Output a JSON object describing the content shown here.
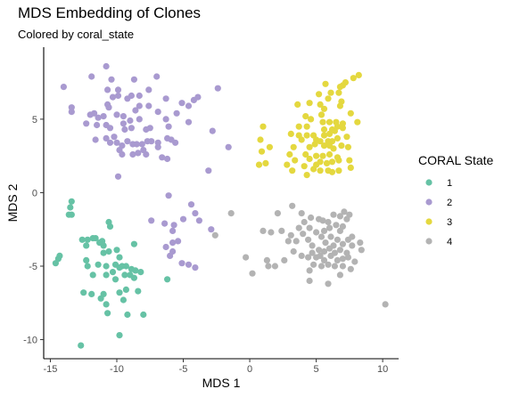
{
  "chart_data": {
    "type": "scatter",
    "title": "MDS Embedding of Clones",
    "subtitle": "Colored by coral_state",
    "xlabel": "MDS 1",
    "ylabel": "MDS 2",
    "xlim": [
      -15.5,
      11.2
    ],
    "ylim": [
      -11.3,
      9.9
    ],
    "x_ticks": [
      -15,
      -10,
      -5,
      0,
      5,
      10
    ],
    "y_ticks": [
      -10,
      -5,
      0,
      5
    ],
    "grid": false,
    "legend": {
      "title": "CORAL State",
      "position": "right"
    },
    "series": [
      {
        "name": "1",
        "color": "#66c2a5",
        "points": [
          [
            -13.4,
            -0.6
          ],
          [
            -13.5,
            -1.0
          ],
          [
            -13.6,
            -1.5
          ],
          [
            -13.4,
            -1.5
          ],
          [
            -14.3,
            -4.3
          ],
          [
            -14.4,
            -4.5
          ],
          [
            -14.6,
            -4.8
          ],
          [
            -12.6,
            -3.2
          ],
          [
            -12.2,
            -3.2
          ],
          [
            -11.8,
            -3.1
          ],
          [
            -12.3,
            -3.6
          ],
          [
            -11.6,
            -3.1
          ],
          [
            -11.1,
            -3.3
          ],
          [
            -11.0,
            -3.6
          ],
          [
            -11.3,
            -3.4
          ],
          [
            -10.6,
            -2.0
          ],
          [
            -10.5,
            -2.3
          ],
          [
            -10.0,
            -3.9
          ],
          [
            -10.6,
            -4.0
          ],
          [
            -11.0,
            -4.1
          ],
          [
            -8.7,
            -3.5
          ],
          [
            -9.8,
            -4.4
          ],
          [
            -12.3,
            -4.6
          ],
          [
            -12.2,
            -5.0
          ],
          [
            -11.4,
            -4.9
          ],
          [
            -10.8,
            -5.0
          ],
          [
            -10.1,
            -4.9
          ],
          [
            -9.6,
            -5.0
          ],
          [
            -9.3,
            -5.0
          ],
          [
            -11.8,
            -5.6
          ],
          [
            -10.8,
            -5.6
          ],
          [
            -10.3,
            -5.4
          ],
          [
            -9.8,
            -5.1
          ],
          [
            -9.4,
            -5.6
          ],
          [
            -9.0,
            -5.6
          ],
          [
            -8.9,
            -5.2
          ],
          [
            -8.6,
            -5.3
          ],
          [
            -8.2,
            -5.4
          ],
          [
            -10.1,
            -5.9
          ],
          [
            -8.7,
            -5.8
          ],
          [
            -12.5,
            -6.8
          ],
          [
            -11.9,
            -6.9
          ],
          [
            -11.0,
            -6.9
          ],
          [
            -9.8,
            -6.8
          ],
          [
            -9.3,
            -6.6
          ],
          [
            -8.4,
            -6.7
          ],
          [
            -11.2,
            -7.2
          ],
          [
            -9.5,
            -7.3
          ],
          [
            -10.8,
            -7.6
          ],
          [
            -10.7,
            -8.2
          ],
          [
            -9.2,
            -8.3
          ],
          [
            -8.0,
            -8.3
          ],
          [
            -6.2,
            -5.9
          ],
          [
            -9.8,
            -9.7
          ],
          [
            -12.7,
            -10.4
          ]
        ]
      },
      {
        "name": "2",
        "color": "#a99ad0",
        "points": [
          [
            -10.8,
            8.6
          ],
          [
            -11.9,
            7.9
          ],
          [
            -10.4,
            7.7
          ],
          [
            -8.7,
            7.7
          ],
          [
            -7.0,
            7.9
          ],
          [
            -14.0,
            7.2
          ],
          [
            -10.7,
            7.0
          ],
          [
            -9.9,
            7.0
          ],
          [
            -7.6,
            7.0
          ],
          [
            -2.4,
            7.1
          ],
          [
            -10.3,
            6.5
          ],
          [
            -9.9,
            6.6
          ],
          [
            -9.2,
            6.4
          ],
          [
            -8.9,
            6.6
          ],
          [
            -8.3,
            6.6
          ],
          [
            -6.3,
            6.4
          ],
          [
            -4.2,
            6.3
          ],
          [
            -3.9,
            6.5
          ],
          [
            -13.4,
            5.8
          ],
          [
            -13.4,
            5.5
          ],
          [
            -10.7,
            6.0
          ],
          [
            -10.6,
            5.8
          ],
          [
            -10.0,
            5.3
          ],
          [
            -8.6,
            5.6
          ],
          [
            -7.6,
            5.9
          ],
          [
            -8.3,
            5.9
          ],
          [
            -6.3,
            5.0
          ],
          [
            -5.5,
            5.4
          ],
          [
            -5.1,
            6.1
          ],
          [
            -4.6,
            5.9
          ],
          [
            -12.0,
            5.3
          ],
          [
            -11.7,
            5.4
          ],
          [
            -11.4,
            5.1
          ],
          [
            -11.0,
            5.2
          ],
          [
            -9.5,
            5.2
          ],
          [
            -9.5,
            4.7
          ],
          [
            -9.0,
            4.9
          ],
          [
            -8.3,
            5.0
          ],
          [
            -6.9,
            5.5
          ],
          [
            -7.8,
            4.3
          ],
          [
            -12.3,
            4.7
          ],
          [
            -11.5,
            4.6
          ],
          [
            -10.8,
            4.6
          ],
          [
            -10.5,
            4.4
          ],
          [
            -10.2,
            3.8
          ],
          [
            -9.4,
            4.3
          ],
          [
            -8.9,
            4.4
          ],
          [
            -7.5,
            4.4
          ],
          [
            -6.1,
            4.5
          ],
          [
            -4.6,
            4.8
          ],
          [
            -2.8,
            4.2
          ],
          [
            -11.6,
            3.6
          ],
          [
            -10.8,
            3.7
          ],
          [
            -10.5,
            3.4
          ],
          [
            -10.0,
            3.4
          ],
          [
            -9.6,
            3.2
          ],
          [
            -9.2,
            3.5
          ],
          [
            -8.8,
            3.3
          ],
          [
            -8.5,
            3.3
          ],
          [
            -8.1,
            3.3
          ],
          [
            -7.7,
            3.5
          ],
          [
            -7.4,
            3.5
          ],
          [
            -6.9,
            3.4
          ],
          [
            -6.2,
            3.7
          ],
          [
            -5.9,
            3.6
          ],
          [
            -5.6,
            3.4
          ],
          [
            -1.6,
            3.1
          ],
          [
            -9.8,
            2.9
          ],
          [
            -9.6,
            2.6
          ],
          [
            -8.8,
            2.6
          ],
          [
            -8.4,
            2.7
          ],
          [
            -8.0,
            2.9
          ],
          [
            -7.8,
            2.6
          ],
          [
            -6.9,
            3.1
          ],
          [
            -6.6,
            2.4
          ],
          [
            -6.2,
            2.3
          ],
          [
            -3.1,
            1.5
          ],
          [
            -9.9,
            1.1
          ],
          [
            -6.1,
            -0.2
          ],
          [
            -4.4,
            -0.8
          ],
          [
            -4.1,
            -1.4
          ],
          [
            -5.0,
            -1.8
          ],
          [
            -3.8,
            -1.9
          ],
          [
            -5.7,
            -2.2
          ],
          [
            -6.4,
            -2.1
          ],
          [
            -7.4,
            -1.9
          ],
          [
            -2.9,
            -2.5
          ],
          [
            -5.8,
            -2.6
          ],
          [
            -5.8,
            -3.4
          ],
          [
            -5.4,
            -3.3
          ],
          [
            -6.3,
            -3.7
          ],
          [
            -5.8,
            -4.0
          ],
          [
            -6.0,
            -4.3
          ],
          [
            -5.1,
            -4.8
          ],
          [
            -4.6,
            -4.9
          ],
          [
            -4.1,
            -5.1
          ]
        ]
      },
      {
        "name": "3",
        "color": "#e4d83f",
        "points": [
          [
            7.8,
            7.8
          ],
          [
            8.2,
            8.0
          ],
          [
            7.2,
            7.5
          ],
          [
            5.7,
            7.4
          ],
          [
            7.0,
            7.3
          ],
          [
            6.8,
            7.2
          ],
          [
            6.1,
            6.8
          ],
          [
            6.7,
            6.8
          ],
          [
            5.2,
            6.7
          ],
          [
            5.9,
            6.4
          ],
          [
            6.9,
            6.2
          ],
          [
            3.6,
            6.0
          ],
          [
            4.5,
            6.1
          ],
          [
            5.3,
            6.0
          ],
          [
            5.6,
            5.7
          ],
          [
            5.4,
            5.3
          ],
          [
            6.8,
            5.9
          ],
          [
            7.6,
            5.4
          ],
          [
            8.1,
            4.8
          ],
          [
            7.0,
            4.7
          ],
          [
            4.2,
            5.2
          ],
          [
            4.6,
            5.0
          ],
          [
            5.5,
            4.8
          ],
          [
            6.0,
            4.8
          ],
          [
            6.5,
            4.8
          ],
          [
            1.0,
            4.5
          ],
          [
            3.7,
            4.5
          ],
          [
            4.3,
            4.5
          ],
          [
            5.6,
            4.3
          ],
          [
            6.2,
            4.3
          ],
          [
            6.6,
            4.5
          ],
          [
            7.0,
            4.4
          ],
          [
            3.1,
            4.0
          ],
          [
            3.7,
            3.9
          ],
          [
            4.3,
            3.9
          ],
          [
            4.8,
            3.9
          ],
          [
            5.6,
            3.9
          ],
          [
            6.0,
            4.0
          ],
          [
            6.4,
            4.2
          ],
          [
            7.3,
            3.8
          ],
          [
            0.8,
            3.6
          ],
          [
            3.9,
            3.6
          ],
          [
            5.0,
            3.6
          ],
          [
            5.3,
            3.5
          ],
          [
            5.9,
            3.5
          ],
          [
            6.2,
            3.5
          ],
          [
            6.6,
            3.7
          ],
          [
            1.5,
            3.1
          ],
          [
            3.3,
            3.1
          ],
          [
            4.5,
            3.1
          ],
          [
            4.9,
            3.3
          ],
          [
            5.6,
            3.2
          ],
          [
            6.0,
            3.2
          ],
          [
            6.3,
            3.0
          ],
          [
            6.9,
            3.2
          ],
          [
            7.4,
            3.1
          ],
          [
            0.9,
            2.8
          ],
          [
            3.0,
            2.6
          ],
          [
            4.2,
            2.6
          ],
          [
            5.0,
            2.5
          ],
          [
            5.5,
            2.5
          ],
          [
            6.0,
            2.6
          ],
          [
            6.6,
            2.4
          ],
          [
            5.3,
            2.1
          ],
          [
            5.8,
            2.0
          ],
          [
            6.2,
            2.1
          ],
          [
            6.7,
            2.2
          ],
          [
            7.5,
            2.2
          ],
          [
            3.4,
            2.2
          ],
          [
            4.5,
            2.3
          ],
          [
            1.2,
            2.0
          ],
          [
            2.8,
            1.9
          ],
          [
            4.1,
            1.8
          ],
          [
            4.8,
            1.6
          ],
          [
            5.3,
            1.5
          ],
          [
            5.9,
            1.5
          ],
          [
            6.2,
            1.4
          ],
          [
            6.7,
            1.5
          ],
          [
            7.6,
            1.7
          ],
          [
            0.7,
            1.9
          ],
          [
            3.2,
            1.5
          ],
          [
            5.0,
            1.9
          ],
          [
            4.3,
            1.2
          ]
        ]
      },
      {
        "name": "4",
        "color": "#b3b3b3",
        "points": [
          [
            3.2,
            -0.9
          ],
          [
            3.9,
            -1.4
          ],
          [
            4.1,
            -2.0
          ],
          [
            4.6,
            -1.7
          ],
          [
            5.2,
            -1.8
          ],
          [
            5.5,
            -1.9
          ],
          [
            5.9,
            -2.0
          ],
          [
            6.3,
            -1.5
          ],
          [
            6.8,
            -1.6
          ],
          [
            7.1,
            -1.3
          ],
          [
            7.3,
            -1.8
          ],
          [
            7.5,
            -1.5
          ],
          [
            2.1,
            -1.4
          ],
          [
            -1.4,
            -1.4
          ],
          [
            -2.6,
            -2.9
          ],
          [
            1.0,
            -2.6
          ],
          [
            1.6,
            -2.7
          ],
          [
            2.4,
            -2.6
          ],
          [
            3.7,
            -2.4
          ],
          [
            4.0,
            -2.8
          ],
          [
            4.5,
            -2.4
          ],
          [
            5.0,
            -2.7
          ],
          [
            5.6,
            -2.6
          ],
          [
            6.0,
            -2.4
          ],
          [
            6.5,
            -2.2
          ],
          [
            6.8,
            -2.6
          ],
          [
            7.0,
            -2.3
          ],
          [
            3.1,
            -2.9
          ],
          [
            3.5,
            -3.3
          ],
          [
            4.4,
            -3.2
          ],
          [
            5.4,
            -3.0
          ],
          [
            5.7,
            -3.4
          ],
          [
            6.1,
            -3.0
          ],
          [
            6.3,
            -3.6
          ],
          [
            6.6,
            -3.2
          ],
          [
            7.0,
            -3.5
          ],
          [
            7.4,
            -3.2
          ],
          [
            7.7,
            -3.0
          ],
          [
            8.4,
            -3.9
          ],
          [
            2.9,
            -3.3
          ],
          [
            4.7,
            -3.6
          ],
          [
            5.2,
            -3.9
          ],
          [
            5.6,
            -4.0
          ],
          [
            6.0,
            -3.8
          ],
          [
            6.4,
            -4.1
          ],
          [
            6.8,
            -3.9
          ],
          [
            7.3,
            -4.1
          ],
          [
            7.7,
            -3.6
          ],
          [
            8.3,
            -3.4
          ],
          [
            3.3,
            -4.0
          ],
          [
            3.9,
            -4.3
          ],
          [
            4.4,
            -4.4
          ],
          [
            4.7,
            -4.1
          ],
          [
            5.0,
            -4.4
          ],
          [
            5.3,
            -4.3
          ],
          [
            5.6,
            -4.6
          ],
          [
            6.1,
            -4.3
          ],
          [
            6.6,
            -4.6
          ],
          [
            7.0,
            -4.5
          ],
          [
            7.4,
            -4.4
          ],
          [
            7.9,
            -4.7
          ],
          [
            4.8,
            -4.9
          ],
          [
            5.4,
            -5.0
          ],
          [
            5.9,
            -4.9
          ],
          [
            6.4,
            -5.0
          ],
          [
            7.0,
            -5.0
          ],
          [
            7.6,
            -5.2
          ],
          [
            4.5,
            -5.3
          ],
          [
            -0.3,
            -4.4
          ],
          [
            1.3,
            -4.6
          ],
          [
            0.2,
            -5.5
          ],
          [
            1.4,
            -5.0
          ],
          [
            1.9,
            -5.0
          ],
          [
            2.6,
            -4.6
          ],
          [
            4.5,
            -6.0
          ],
          [
            5.9,
            -6.2
          ],
          [
            6.8,
            -5.6
          ],
          [
            10.2,
            -7.6
          ]
        ]
      }
    ]
  }
}
